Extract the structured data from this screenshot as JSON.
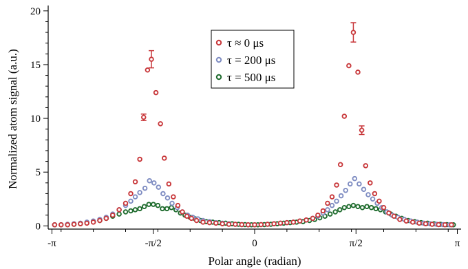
{
  "chart_data": {
    "type": "scatter",
    "title": "",
    "xlabel": "Polar angle (radian)",
    "ylabel": "Normalized atom signal (a.u.)",
    "xlim": [
      -3.2,
      3.2
    ],
    "ylim": [
      -0.3,
      20.5
    ],
    "x_ticks": [
      {
        "value": -3.1416,
        "label": "-π"
      },
      {
        "value": -1.5708,
        "label": "-π/2"
      },
      {
        "value": 0,
        "label": "0"
      },
      {
        "value": 1.5708,
        "label": "π/2"
      },
      {
        "value": 3.1416,
        "label": "π"
      }
    ],
    "y_ticks": [
      {
        "value": 0,
        "label": "0"
      },
      {
        "value": 5,
        "label": "5"
      },
      {
        "value": 10,
        "label": "10"
      },
      {
        "value": 15,
        "label": "15"
      },
      {
        "value": 20,
        "label": "20"
      }
    ],
    "grid": false,
    "legend_position": "top-center",
    "series": [
      {
        "name": "τ ≈ 0 μs",
        "color": "#c8373a",
        "points": [
          {
            "x": -3.1,
            "y": 0.1
          },
          {
            "x": -3.0,
            "y": 0.1
          },
          {
            "x": -2.9,
            "y": 0.1
          },
          {
            "x": -2.8,
            "y": 0.15
          },
          {
            "x": -2.7,
            "y": 0.2
          },
          {
            "x": -2.6,
            "y": 0.25
          },
          {
            "x": -2.5,
            "y": 0.35
          },
          {
            "x": -2.4,
            "y": 0.5
          },
          {
            "x": -2.3,
            "y": 0.7
          },
          {
            "x": -2.2,
            "y": 1.0
          },
          {
            "x": -2.1,
            "y": 1.5
          },
          {
            "x": -2.0,
            "y": 2.1
          },
          {
            "x": -1.92,
            "y": 3.0
          },
          {
            "x": -1.85,
            "y": 4.1
          },
          {
            "x": -1.78,
            "y": 6.2
          },
          {
            "x": -1.72,
            "y": 10.1,
            "err": 0.3
          },
          {
            "x": -1.66,
            "y": 14.5
          },
          {
            "x": -1.6,
            "y": 15.5,
            "err": 0.8
          },
          {
            "x": -1.53,
            "y": 12.4
          },
          {
            "x": -1.46,
            "y": 9.5
          },
          {
            "x": -1.4,
            "y": 6.3
          },
          {
            "x": -1.33,
            "y": 3.9
          },
          {
            "x": -1.26,
            "y": 2.7
          },
          {
            "x": -1.19,
            "y": 1.9
          },
          {
            "x": -1.12,
            "y": 1.3
          },
          {
            "x": -1.05,
            "y": 0.9
          },
          {
            "x": -0.98,
            "y": 0.7
          },
          {
            "x": -0.9,
            "y": 0.5
          },
          {
            "x": -0.8,
            "y": 0.35
          },
          {
            "x": -0.7,
            "y": 0.3
          },
          {
            "x": -0.6,
            "y": 0.25
          },
          {
            "x": -0.5,
            "y": 0.2
          },
          {
            "x": -0.4,
            "y": 0.15
          },
          {
            "x": -0.3,
            "y": 0.15
          },
          {
            "x": -0.2,
            "y": 0.12
          },
          {
            "x": -0.1,
            "y": 0.1
          },
          {
            "x": 0.0,
            "y": 0.1
          },
          {
            "x": 0.1,
            "y": 0.12
          },
          {
            "x": 0.2,
            "y": 0.15
          },
          {
            "x": 0.3,
            "y": 0.2
          },
          {
            "x": 0.4,
            "y": 0.25
          },
          {
            "x": 0.5,
            "y": 0.3
          },
          {
            "x": 0.6,
            "y": 0.35
          },
          {
            "x": 0.7,
            "y": 0.45
          },
          {
            "x": 0.8,
            "y": 0.55
          },
          {
            "x": 0.9,
            "y": 0.7
          },
          {
            "x": 0.98,
            "y": 1.0
          },
          {
            "x": 1.06,
            "y": 1.4
          },
          {
            "x": 1.13,
            "y": 2.1
          },
          {
            "x": 1.2,
            "y": 2.7
          },
          {
            "x": 1.27,
            "y": 3.8
          },
          {
            "x": 1.33,
            "y": 5.7
          },
          {
            "x": 1.39,
            "y": 10.2
          },
          {
            "x": 1.46,
            "y": 14.9
          },
          {
            "x": 1.53,
            "y": 18.0,
            "err": 0.9
          },
          {
            "x": 1.6,
            "y": 14.3
          },
          {
            "x": 1.66,
            "y": 8.9,
            "err": 0.4
          },
          {
            "x": 1.72,
            "y": 5.6
          },
          {
            "x": 1.79,
            "y": 4.0
          },
          {
            "x": 1.86,
            "y": 3.0
          },
          {
            "x": 1.93,
            "y": 2.3
          },
          {
            "x": 2.0,
            "y": 1.7
          },
          {
            "x": 2.08,
            "y": 1.2
          },
          {
            "x": 2.16,
            "y": 0.9
          },
          {
            "x": 2.25,
            "y": 0.6
          },
          {
            "x": 2.35,
            "y": 0.45
          },
          {
            "x": 2.45,
            "y": 0.35
          },
          {
            "x": 2.55,
            "y": 0.25
          },
          {
            "x": 2.65,
            "y": 0.2
          },
          {
            "x": 2.75,
            "y": 0.15
          },
          {
            "x": 2.85,
            "y": 0.12
          },
          {
            "x": 2.95,
            "y": 0.1
          },
          {
            "x": 3.05,
            "y": 0.1
          }
        ]
      },
      {
        "name": "τ = 200 μs",
        "color": "#7e8cc2",
        "points": [
          {
            "x": -3.1,
            "y": 0.1
          },
          {
            "x": -3.0,
            "y": 0.1
          },
          {
            "x": -2.9,
            "y": 0.15
          },
          {
            "x": -2.8,
            "y": 0.2
          },
          {
            "x": -2.7,
            "y": 0.25
          },
          {
            "x": -2.6,
            "y": 0.35
          },
          {
            "x": -2.5,
            "y": 0.45
          },
          {
            "x": -2.4,
            "y": 0.6
          },
          {
            "x": -2.3,
            "y": 0.8
          },
          {
            "x": -2.2,
            "y": 1.1
          },
          {
            "x": -2.1,
            "y": 1.5
          },
          {
            "x": -2.0,
            "y": 1.9
          },
          {
            "x": -1.92,
            "y": 2.3
          },
          {
            "x": -1.85,
            "y": 2.7
          },
          {
            "x": -1.78,
            "y": 3.1
          },
          {
            "x": -1.7,
            "y": 3.5
          },
          {
            "x": -1.63,
            "y": 4.2
          },
          {
            "x": -1.56,
            "y": 4.0
          },
          {
            "x": -1.49,
            "y": 3.6
          },
          {
            "x": -1.42,
            "y": 3.0
          },
          {
            "x": -1.35,
            "y": 2.6
          },
          {
            "x": -1.28,
            "y": 2.1
          },
          {
            "x": -1.2,
            "y": 1.7
          },
          {
            "x": -1.12,
            "y": 1.3
          },
          {
            "x": -1.04,
            "y": 1.0
          },
          {
            "x": -0.96,
            "y": 0.8
          },
          {
            "x": -0.88,
            "y": 0.65
          },
          {
            "x": -0.8,
            "y": 0.5
          },
          {
            "x": -0.7,
            "y": 0.4
          },
          {
            "x": -0.6,
            "y": 0.3
          },
          {
            "x": -0.5,
            "y": 0.25
          },
          {
            "x": -0.4,
            "y": 0.2
          },
          {
            "x": -0.3,
            "y": 0.15
          },
          {
            "x": -0.2,
            "y": 0.12
          },
          {
            "x": -0.1,
            "y": 0.1
          },
          {
            "x": 0.0,
            "y": 0.1
          },
          {
            "x": 0.1,
            "y": 0.12
          },
          {
            "x": 0.2,
            "y": 0.15
          },
          {
            "x": 0.3,
            "y": 0.2
          },
          {
            "x": 0.4,
            "y": 0.25
          },
          {
            "x": 0.5,
            "y": 0.3
          },
          {
            "x": 0.6,
            "y": 0.35
          },
          {
            "x": 0.7,
            "y": 0.45
          },
          {
            "x": 0.8,
            "y": 0.55
          },
          {
            "x": 0.9,
            "y": 0.7
          },
          {
            "x": 0.98,
            "y": 0.9
          },
          {
            "x": 1.06,
            "y": 1.2
          },
          {
            "x": 1.13,
            "y": 1.5
          },
          {
            "x": 1.2,
            "y": 1.9
          },
          {
            "x": 1.27,
            "y": 2.3
          },
          {
            "x": 1.34,
            "y": 2.8
          },
          {
            "x": 1.41,
            "y": 3.3
          },
          {
            "x": 1.48,
            "y": 3.9
          },
          {
            "x": 1.55,
            "y": 4.4
          },
          {
            "x": 1.62,
            "y": 3.9
          },
          {
            "x": 1.69,
            "y": 3.4
          },
          {
            "x": 1.76,
            "y": 2.9
          },
          {
            "x": 1.83,
            "y": 2.5
          },
          {
            "x": 1.9,
            "y": 2.1
          },
          {
            "x": 1.97,
            "y": 1.7
          },
          {
            "x": 2.05,
            "y": 1.3
          },
          {
            "x": 2.13,
            "y": 1.0
          },
          {
            "x": 2.22,
            "y": 0.8
          },
          {
            "x": 2.32,
            "y": 0.6
          },
          {
            "x": 2.42,
            "y": 0.45
          },
          {
            "x": 2.52,
            "y": 0.35
          },
          {
            "x": 2.62,
            "y": 0.25
          },
          {
            "x": 2.72,
            "y": 0.2
          },
          {
            "x": 2.82,
            "y": 0.15
          },
          {
            "x": 2.92,
            "y": 0.12
          },
          {
            "x": 3.02,
            "y": 0.1
          }
        ]
      },
      {
        "name": "τ = 500 μs",
        "color": "#1e6b2d",
        "points": [
          {
            "x": -3.1,
            "y": 0.1
          },
          {
            "x": -3.0,
            "y": 0.1
          },
          {
            "x": -2.9,
            "y": 0.12
          },
          {
            "x": -2.8,
            "y": 0.15
          },
          {
            "x": -2.7,
            "y": 0.2
          },
          {
            "x": -2.6,
            "y": 0.3
          },
          {
            "x": -2.5,
            "y": 0.4
          },
          {
            "x": -2.4,
            "y": 0.5
          },
          {
            "x": -2.3,
            "y": 0.7
          },
          {
            "x": -2.2,
            "y": 0.9
          },
          {
            "x": -2.1,
            "y": 1.1
          },
          {
            "x": -2.0,
            "y": 1.3
          },
          {
            "x": -1.92,
            "y": 1.4
          },
          {
            "x": -1.85,
            "y": 1.5
          },
          {
            "x": -1.78,
            "y": 1.6
          },
          {
            "x": -1.71,
            "y": 1.8
          },
          {
            "x": -1.64,
            "y": 2.0
          },
          {
            "x": -1.57,
            "y": 2.0
          },
          {
            "x": -1.5,
            "y": 1.9
          },
          {
            "x": -1.43,
            "y": 1.6
          },
          {
            "x": -1.36,
            "y": 1.6
          },
          {
            "x": -1.29,
            "y": 1.7
          },
          {
            "x": -1.22,
            "y": 1.5
          },
          {
            "x": -1.15,
            "y": 1.2
          },
          {
            "x": -1.08,
            "y": 1.0
          },
          {
            "x": -1.0,
            "y": 0.8
          },
          {
            "x": -0.92,
            "y": 0.65
          },
          {
            "x": -0.84,
            "y": 0.5
          },
          {
            "x": -0.75,
            "y": 0.4
          },
          {
            "x": -0.65,
            "y": 0.35
          },
          {
            "x": -0.55,
            "y": 0.3
          },
          {
            "x": -0.45,
            "y": 0.25
          },
          {
            "x": -0.35,
            "y": 0.2
          },
          {
            "x": -0.25,
            "y": 0.15
          },
          {
            "x": -0.15,
            "y": 0.12
          },
          {
            "x": -0.05,
            "y": 0.1
          },
          {
            "x": 0.05,
            "y": 0.1
          },
          {
            "x": 0.15,
            "y": 0.12
          },
          {
            "x": 0.25,
            "y": 0.15
          },
          {
            "x": 0.35,
            "y": 0.2
          },
          {
            "x": 0.45,
            "y": 0.25
          },
          {
            "x": 0.55,
            "y": 0.3
          },
          {
            "x": 0.65,
            "y": 0.35
          },
          {
            "x": 0.75,
            "y": 0.4
          },
          {
            "x": 0.85,
            "y": 0.5
          },
          {
            "x": 0.93,
            "y": 0.6
          },
          {
            "x": 1.01,
            "y": 0.75
          },
          {
            "x": 1.09,
            "y": 0.9
          },
          {
            "x": 1.17,
            "y": 1.1
          },
          {
            "x": 1.25,
            "y": 1.3
          },
          {
            "x": 1.32,
            "y": 1.5
          },
          {
            "x": 1.39,
            "y": 1.7
          },
          {
            "x": 1.46,
            "y": 1.8
          },
          {
            "x": 1.53,
            "y": 1.9
          },
          {
            "x": 1.6,
            "y": 1.8
          },
          {
            "x": 1.67,
            "y": 1.7
          },
          {
            "x": 1.74,
            "y": 1.8
          },
          {
            "x": 1.81,
            "y": 1.7
          },
          {
            "x": 1.88,
            "y": 1.6
          },
          {
            "x": 1.95,
            "y": 1.5
          },
          {
            "x": 2.03,
            "y": 1.3
          },
          {
            "x": 2.11,
            "y": 1.1
          },
          {
            "x": 2.19,
            "y": 0.9
          },
          {
            "x": 2.28,
            "y": 0.7
          },
          {
            "x": 2.38,
            "y": 0.5
          },
          {
            "x": 2.48,
            "y": 0.4
          },
          {
            "x": 2.58,
            "y": 0.3
          },
          {
            "x": 2.68,
            "y": 0.25
          },
          {
            "x": 2.78,
            "y": 0.2
          },
          {
            "x": 2.88,
            "y": 0.15
          },
          {
            "x": 2.98,
            "y": 0.12
          },
          {
            "x": 3.08,
            "y": 0.1
          }
        ]
      }
    ]
  }
}
